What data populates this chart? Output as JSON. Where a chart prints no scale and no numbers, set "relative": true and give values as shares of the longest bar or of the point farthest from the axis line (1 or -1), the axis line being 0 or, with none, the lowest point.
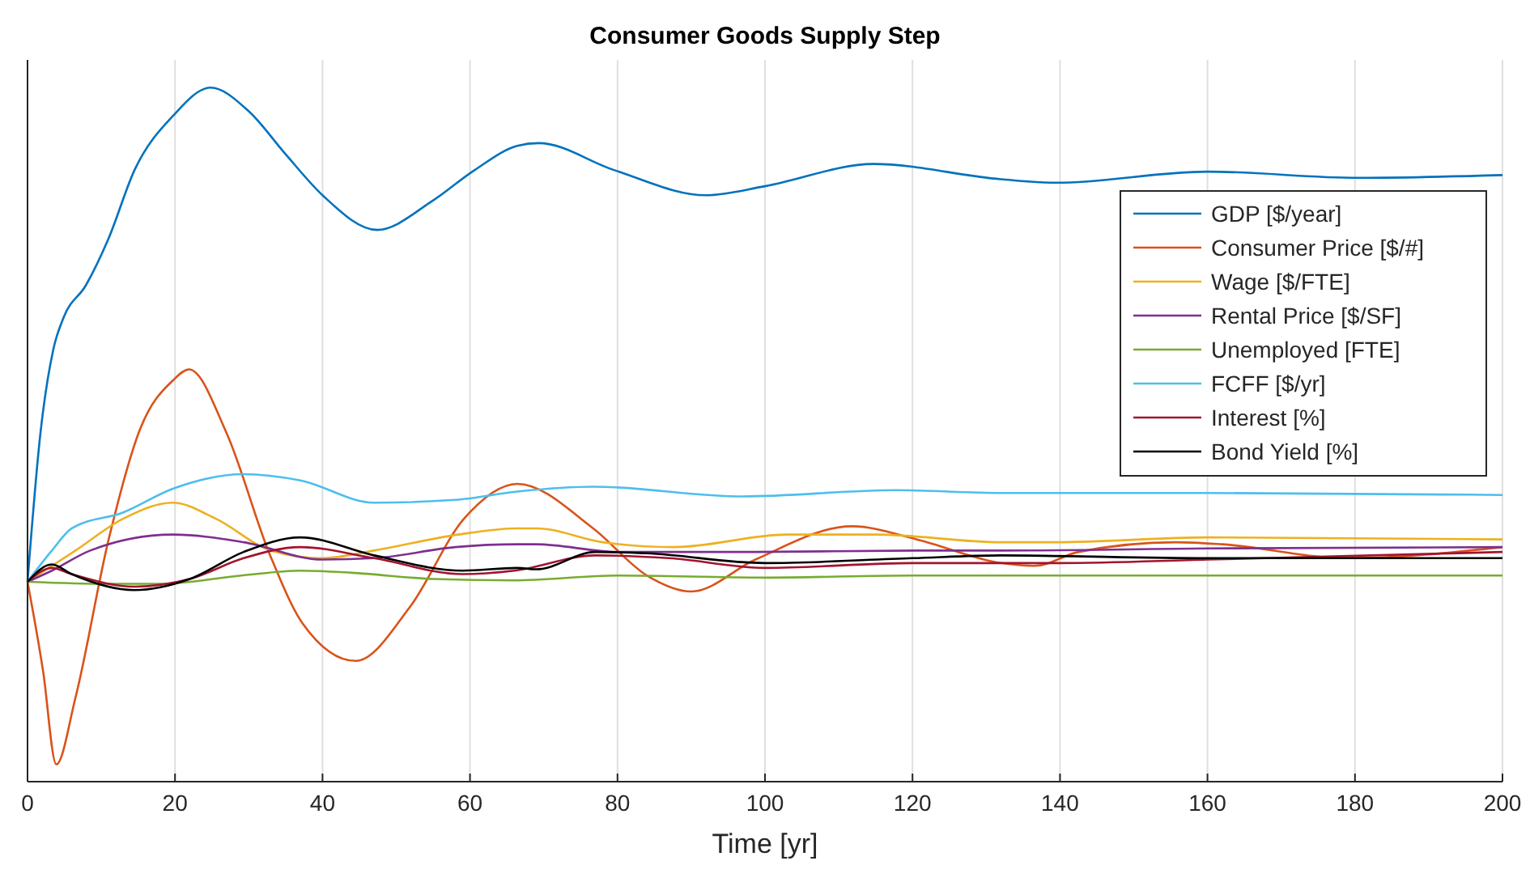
{
  "chart_data": {
    "type": "line",
    "title": "Consumer Goods Supply Step",
    "xlabel": "Time [yr]",
    "relative": true,
    "xlim": [
      0,
      200
    ],
    "xticks": [
      0,
      20,
      40,
      60,
      80,
      100,
      120,
      140,
      160,
      180,
      200
    ],
    "grid": "x",
    "legend": "top right",
    "tick_labels": "x",
    "line_style": "solid",
    "marker": "none",
    "series": [
      {
        "name": "GDP [$/year]",
        "color": "#0072bd",
        "x": [
          0,
          1.75,
          3.5,
          4.9,
          7.9,
          11,
          14.5,
          19.7,
          24.8,
          30,
          35,
          40,
          47.4,
          54.8,
          60.6,
          66.4,
          69.3,
          79.6,
          92,
          100,
          114.7,
          132,
          139.5,
          160,
          180.5,
          200
        ],
        "values": [
          0.288,
          0.502,
          0.623,
          0.669,
          0.715,
          0.783,
          0.881,
          0.959,
          1,
          0.966,
          0.904,
          0.845,
          0.795,
          0.836,
          0.881,
          0.916,
          0.92,
          0.881,
          0.845,
          0.858,
          0.89,
          0.868,
          0.863,
          0.879,
          0.87,
          0.874
        ]
      },
      {
        "name": "Consumer Price [$/#]",
        "color": "#d95319",
        "x": [
          0,
          2.1,
          3.9,
          6.5,
          11,
          15.3,
          19.7,
          21.9,
          27,
          32.9,
          37.3,
          44.5,
          51.8,
          59.2,
          66.4,
          76.7,
          84,
          90,
          98.7,
          111.8,
          120.6,
          132,
          136.6,
          142.5,
          155.7,
          162,
          179,
          200
        ],
        "values": [
          0.288,
          0.16,
          0.025,
          0.121,
          0.349,
          0.509,
          0.578,
          0.594,
          0.502,
          0.326,
          0.228,
          0.174,
          0.251,
          0.379,
          0.429,
          0.365,
          0.297,
          0.274,
          0.32,
          0.368,
          0.349,
          0.315,
          0.311,
          0.331,
          0.345,
          0.342,
          0.322,
          0.338
        ]
      },
      {
        "name": "Wage [$/FTE]",
        "color": "#edb120",
        "x": [
          0,
          6.5,
          13,
          19.7,
          25.5,
          33,
          40,
          47,
          58.4,
          66.4,
          69,
          78,
          87.7,
          103,
          115,
          132,
          139.5,
          160,
          200
        ],
        "values": [
          0.288,
          0.333,
          0.379,
          0.402,
          0.379,
          0.333,
          0.322,
          0.333,
          0.356,
          0.365,
          0.365,
          0.345,
          0.338,
          0.356,
          0.356,
          0.345,
          0.345,
          0.352,
          0.349
        ]
      },
      {
        "name": "Rental Price [$/SF]",
        "color": "#7e2f8e",
        "x": [
          0,
          3.3,
          8.5,
          19.7,
          29.3,
          40,
          47,
          58,
          66.4,
          69,
          80,
          98.7,
          120.6,
          132,
          160,
          200
        ],
        "values": [
          0.288,
          0.304,
          0.333,
          0.356,
          0.345,
          0.32,
          0.322,
          0.338,
          0.342,
          0.342,
          0.331,
          0.331,
          0.333,
          0.333,
          0.336,
          0.338
        ]
      },
      {
        "name": "Unemployed [FTE]",
        "color": "#77ac30",
        "x": [
          0,
          11,
          18,
          29,
          37,
          44,
          55,
          66,
          80,
          100,
          120,
          160,
          200
        ],
        "values": [
          0.288,
          0.285,
          0.285,
          0.297,
          0.304,
          0.301,
          0.292,
          0.29,
          0.297,
          0.294,
          0.297,
          0.297,
          0.297
        ]
      },
      {
        "name": "FCFF [$/yr]",
        "color": "#4dbeee",
        "x": [
          0,
          3.3,
          6,
          13,
          19.7,
          29.3,
          37,
          47,
          58,
          66.4,
          76.7,
          97,
          117.7,
          132,
          160,
          200
        ],
        "values": [
          0.288,
          0.333,
          0.365,
          0.388,
          0.422,
          0.443,
          0.434,
          0.402,
          0.406,
          0.418,
          0.425,
          0.411,
          0.42,
          0.416,
          0.416,
          0.413
        ]
      },
      {
        "name": "Interest [%]",
        "color": "#a2142f",
        "x": [
          0,
          3.3,
          6,
          14.5,
          22,
          29.3,
          37,
          47,
          59,
          66,
          77,
          87,
          100,
          120,
          140,
          160,
          200
        ],
        "values": [
          0.288,
          0.308,
          0.299,
          0.281,
          0.292,
          0.322,
          0.338,
          0.322,
          0.299,
          0.304,
          0.326,
          0.322,
          0.308,
          0.315,
          0.315,
          0.32,
          0.331
        ]
      },
      {
        "name": "Bond Yield [%]",
        "color": "#000000",
        "x": [
          0,
          3.3,
          6,
          14.5,
          22,
          29.3,
          37,
          47,
          59,
          66.4,
          69,
          77,
          84,
          100,
          120,
          132,
          160,
          200
        ],
        "values": [
          0.288,
          0.313,
          0.299,
          0.276,
          0.292,
          0.331,
          0.352,
          0.326,
          0.304,
          0.308,
          0.306,
          0.331,
          0.329,
          0.315,
          0.322,
          0.326,
          0.322,
          0.322
        ]
      }
    ]
  }
}
